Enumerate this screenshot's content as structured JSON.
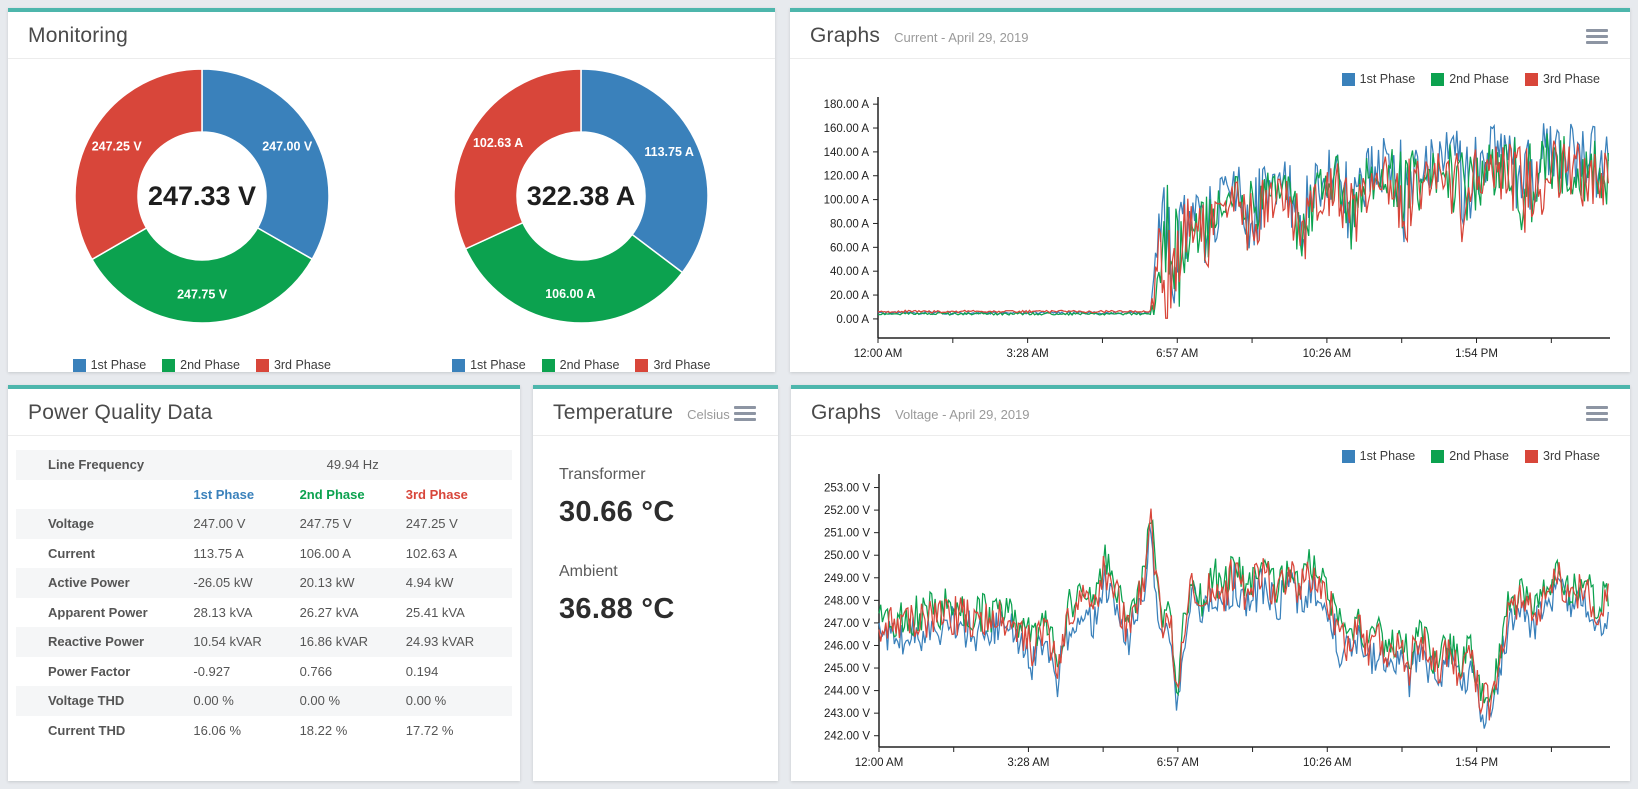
{
  "theme": {
    "accent": "#4db6ac",
    "phase_blue": "#3a81bb",
    "phase_green": "#0ca24f",
    "phase_red": "#d8463a",
    "page_bg": "#e7eaee"
  },
  "monitoring": {
    "title": "Monitoring"
  },
  "graphs_current": {
    "title": "Graphs",
    "subtitle": "Current - April 29, 2019"
  },
  "graphs_voltage": {
    "title": "Graphs",
    "subtitle": "Voltage - April 29, 2019"
  },
  "temperature": {
    "title": "Temperature",
    "subtitle": "Celsius",
    "readings": [
      {
        "label": "Transformer",
        "value": "30.66 °C"
      },
      {
        "label": "Ambient",
        "value": "36.88 °C"
      }
    ]
  },
  "power_quality": {
    "title": "Power Quality Data",
    "line_frequency": {
      "label": "Line Frequency",
      "value": "49.94 Hz"
    },
    "columns": [
      "1st Phase",
      "2nd Phase",
      "3rd Phase"
    ],
    "rows": [
      {
        "label": "Voltage",
        "values": [
          "247.00 V",
          "247.75 V",
          "247.25 V"
        ]
      },
      {
        "label": "Current",
        "values": [
          "113.75 A",
          "106.00 A",
          "102.63 A"
        ]
      },
      {
        "label": "Active Power",
        "values": [
          "-26.05 kW",
          "20.13 kW",
          "4.94 kW"
        ]
      },
      {
        "label": "Apparent Power",
        "values": [
          "28.13 kVA",
          "26.27 kVA",
          "25.41 kVA"
        ]
      },
      {
        "label": "Reactive Power",
        "values": [
          "10.54 kVAR",
          "16.86 kVAR",
          "24.93 kVAR"
        ]
      },
      {
        "label": "Power Factor",
        "values": [
          "-0.927",
          "0.766",
          "0.194"
        ]
      },
      {
        "label": "Voltage THD",
        "values": [
          "0.00 %",
          "0.00 %",
          "0.00 %"
        ]
      },
      {
        "label": "Current THD",
        "values": [
          "16.06 %",
          "18.22 %",
          "17.72 %"
        ]
      }
    ]
  },
  "chart_data": [
    {
      "type": "pie",
      "subtype": "donut",
      "name": "voltage-by-phase",
      "center_label": "247.33 V",
      "labels": [
        "1st Phase",
        "2nd Phase",
        "3rd Phase"
      ],
      "values": [
        247.0,
        247.75,
        247.25
      ],
      "value_labels": [
        "247.00 V",
        "247.75 V",
        "247.25 V"
      ],
      "colors": [
        "#3a81bb",
        "#0ca24f",
        "#d8463a"
      ]
    },
    {
      "type": "pie",
      "subtype": "donut",
      "name": "current-by-phase",
      "center_label": "322.38 A",
      "labels": [
        "1st Phase",
        "2nd Phase",
        "3rd Phase"
      ],
      "values": [
        113.75,
        106.0,
        102.63
      ],
      "value_labels": [
        "113.75 A",
        "106.00 A",
        "102.63 A"
      ],
      "colors": [
        "#3a81bb",
        "#0ca24f",
        "#d8463a"
      ]
    },
    {
      "type": "line",
      "title": "Current - April 29, 2019",
      "unit": "A",
      "ylim": [
        -16,
        186
      ],
      "yticks": [
        0,
        20,
        40,
        60,
        80,
        100,
        120,
        140,
        160,
        180
      ],
      "xtick_labels": [
        "12:00 AM",
        "3:28 AM",
        "6:57 AM",
        "10:26 AM",
        "1:54 PM"
      ],
      "x_max": 1020,
      "x_tick_step": 104.25,
      "clamp_min": 0.5,
      "legend_position": "top-right",
      "grid": false,
      "series": [
        {
          "name": "1st Phase",
          "color": "#3a81bb",
          "anchors": [
            [
              0,
              5,
              1.2
            ],
            [
              380,
              5,
              1.2
            ],
            [
              390,
              30,
              55
            ],
            [
              405,
              60,
              70
            ],
            [
              420,
              50,
              50
            ],
            [
              440,
              88,
              25
            ],
            [
              460,
              75,
              35
            ],
            [
              480,
              102,
              18
            ],
            [
              500,
              108,
              20
            ],
            [
              520,
              85,
              40
            ],
            [
              545,
              110,
              20
            ],
            [
              570,
              112,
              22
            ],
            [
              590,
              78,
              35
            ],
            [
              615,
              115,
              22
            ],
            [
              640,
              122,
              25
            ],
            [
              660,
              90,
              35
            ],
            [
              685,
              128,
              22
            ],
            [
              710,
              130,
              24
            ],
            [
              735,
              105,
              45
            ],
            [
              760,
              132,
              25
            ],
            [
              790,
              138,
              26
            ],
            [
              815,
              112,
              45
            ],
            [
              845,
              135,
              26
            ],
            [
              875,
              140,
              28
            ],
            [
              905,
              115,
              48
            ],
            [
              935,
              140,
              28
            ],
            [
              965,
              138,
              28
            ],
            [
              990,
              132,
              30
            ],
            [
              1020,
              130,
              30
            ]
          ]
        },
        {
          "name": "2nd Phase",
          "color": "#0ca24f",
          "anchors": [
            [
              0,
              4.3,
              1.0
            ],
            [
              380,
              4.3,
              1.0
            ],
            [
              390,
              28,
              50
            ],
            [
              405,
              55,
              65
            ],
            [
              420,
              46,
              48
            ],
            [
              440,
              84,
              24
            ],
            [
              460,
              70,
              33
            ],
            [
              480,
              97,
              17
            ],
            [
              500,
              102,
              19
            ],
            [
              520,
              80,
              38
            ],
            [
              545,
              104,
              19
            ],
            [
              570,
              106,
              20
            ],
            [
              590,
              73,
              33
            ],
            [
              615,
              108,
              21
            ],
            [
              640,
              115,
              24
            ],
            [
              660,
              85,
              33
            ],
            [
              685,
              120,
              21
            ],
            [
              710,
              122,
              22
            ],
            [
              735,
              98,
              42
            ],
            [
              760,
              124,
              24
            ],
            [
              790,
              128,
              24
            ],
            [
              815,
              104,
              42
            ],
            [
              845,
              126,
              24
            ],
            [
              875,
              130,
              26
            ],
            [
              905,
              107,
              45
            ],
            [
              935,
              130,
              26
            ],
            [
              965,
              128,
              26
            ],
            [
              990,
              124,
              28
            ],
            [
              1020,
              122,
              28
            ]
          ]
        },
        {
          "name": "3rd Phase",
          "color": "#d8463a",
          "anchors": [
            [
              0,
              6.2,
              1.0
            ],
            [
              380,
              6.2,
              1.0
            ],
            [
              390,
              30,
              52
            ],
            [
              405,
              57,
              66
            ],
            [
              420,
              48,
              48
            ],
            [
              440,
              82,
              24
            ],
            [
              460,
              68,
              32
            ],
            [
              480,
              94,
              17
            ],
            [
              500,
              99,
              18
            ],
            [
              520,
              77,
              37
            ],
            [
              545,
              101,
              18
            ],
            [
              570,
              102,
              20
            ],
            [
              590,
              70,
              32
            ],
            [
              615,
              104,
              20
            ],
            [
              640,
              110,
              23
            ],
            [
              660,
              82,
              32
            ],
            [
              685,
              115,
              20
            ],
            [
              710,
              117,
              21
            ],
            [
              735,
              94,
              40
            ],
            [
              760,
              119,
              23
            ],
            [
              790,
              123,
              23
            ],
            [
              815,
              100,
              40
            ],
            [
              845,
              121,
              23
            ],
            [
              875,
              125,
              25
            ],
            [
              905,
              103,
              43
            ],
            [
              935,
              125,
              25
            ],
            [
              965,
              123,
              25
            ],
            [
              990,
              119,
              27
            ],
            [
              1020,
              118,
              27
            ]
          ]
        }
      ]
    },
    {
      "type": "line",
      "title": "Voltage - April 29, 2019",
      "unit": "V",
      "ylim": [
        241.5,
        253.6
      ],
      "yticks": [
        242,
        243,
        244,
        245,
        246,
        247,
        248,
        249,
        250,
        251,
        252,
        253
      ],
      "xtick_labels": [
        "12:00 AM",
        "3:28 AM",
        "6:57 AM",
        "10:26 AM",
        "1:54 PM"
      ],
      "x_max": 1020,
      "x_tick_step": 104.25,
      "legend_position": "top-right",
      "grid": false,
      "base_anchors": [
        [
          0,
          246.8,
          0.8
        ],
        [
          50,
          247.0,
          0.9
        ],
        [
          100,
          247.4,
          0.9
        ],
        [
          150,
          247.1,
          0.9
        ],
        [
          185,
          247.3,
          0.8
        ],
        [
          215,
          245.7,
          1.0
        ],
        [
          232,
          246.9,
          0.8
        ],
        [
          250,
          245.1,
          1.0
        ],
        [
          265,
          247.4,
          0.8
        ],
        [
          285,
          248.4,
          0.8
        ],
        [
          300,
          247.5,
          0.7
        ],
        [
          315,
          249.4,
          0.9
        ],
        [
          330,
          248.3,
          0.8
        ],
        [
          345,
          246.7,
          0.9
        ],
        [
          360,
          247.9,
          0.8
        ],
        [
          371,
          249.0,
          0.6
        ],
        [
          378,
          251.9,
          0.7
        ],
        [
          386,
          249.2,
          0.7
        ],
        [
          396,
          246.6,
          0.8
        ],
        [
          406,
          247.4,
          0.7
        ],
        [
          416,
          243.7,
          0.8
        ],
        [
          424,
          246.6,
          0.7
        ],
        [
          436,
          248.7,
          0.9
        ],
        [
          452,
          247.7,
          0.8
        ],
        [
          466,
          248.9,
          0.9
        ],
        [
          480,
          248.1,
          0.8
        ],
        [
          496,
          249.4,
          0.9
        ],
        [
          510,
          248.3,
          0.8
        ],
        [
          526,
          248.9,
          0.9
        ],
        [
          540,
          249.2,
          0.9
        ],
        [
          556,
          248.1,
          0.8
        ],
        [
          570,
          249.3,
          0.9
        ],
        [
          586,
          248.5,
          0.8
        ],
        [
          600,
          249.1,
          0.9
        ],
        [
          614,
          248.8,
          0.8
        ],
        [
          628,
          248.0,
          0.8
        ],
        [
          642,
          246.5,
          0.9
        ],
        [
          656,
          246.0,
          0.9
        ],
        [
          670,
          246.7,
          0.8
        ],
        [
          684,
          245.7,
          0.9
        ],
        [
          698,
          246.3,
          0.8
        ],
        [
          712,
          245.3,
          0.9
        ],
        [
          726,
          246.1,
          0.8
        ],
        [
          740,
          245.1,
          0.9
        ],
        [
          754,
          246.5,
          0.8
        ],
        [
          768,
          245.5,
          0.9
        ],
        [
          782,
          245.0,
          0.8
        ],
        [
          796,
          245.9,
          0.8
        ],
        [
          810,
          244.7,
          0.9
        ],
        [
          826,
          245.6,
          0.8
        ],
        [
          840,
          243.6,
          0.8
        ],
        [
          854,
          243.4,
          0.9
        ],
        [
          866,
          245.5,
          0.8
        ],
        [
          880,
          247.7,
          0.8
        ],
        [
          898,
          248.0,
          0.8
        ],
        [
          916,
          247.4,
          0.8
        ],
        [
          934,
          248.4,
          0.8
        ],
        [
          950,
          249.0,
          0.8
        ],
        [
          966,
          248.0,
          0.8
        ],
        [
          982,
          248.7,
          0.8
        ],
        [
          1000,
          247.6,
          0.8
        ],
        [
          1020,
          248.0,
          0.8
        ]
      ],
      "series": [
        {
          "name": "1st Phase",
          "color": "#3a81bb",
          "offset": -0.55
        },
        {
          "name": "2nd Phase",
          "color": "#0ca24f",
          "offset": 0.3
        },
        {
          "name": "3rd Phase",
          "color": "#d8463a",
          "offset": 0.0
        }
      ]
    }
  ]
}
